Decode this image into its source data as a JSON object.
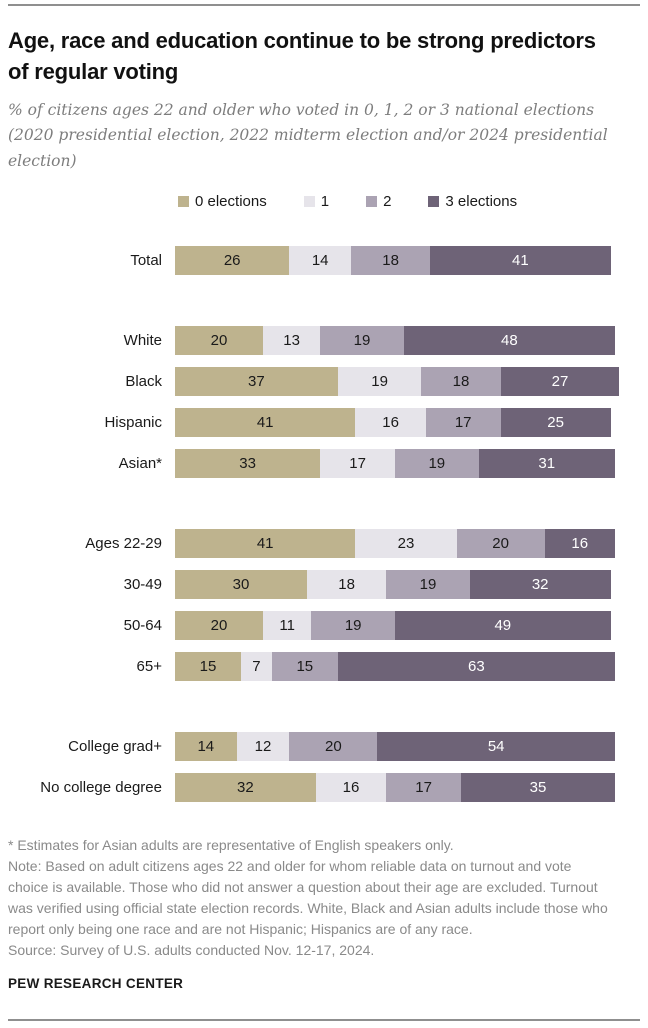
{
  "chart_data": {
    "type": "bar",
    "stacked": true,
    "orientation": "horizontal",
    "title": "Age, race and education continue to be strong predictors of regular voting",
    "subtitle": "% of citizens ages 22 and older who voted in 0, 1, 2 or 3 national elections (2020 presidential election, 2022 midterm election and/or 2024 presidential election)",
    "unit": "%",
    "xlim": [
      0,
      100
    ],
    "legend_position": "top",
    "series": [
      {
        "name": "0 elections",
        "color": "#beb38e",
        "text_color": "#1a1a1a"
      },
      {
        "name": "1",
        "color": "#e6e4ea",
        "text_color": "#1a1a1a"
      },
      {
        "name": "2",
        "color": "#aba3b3",
        "text_color": "#1a1a1a"
      },
      {
        "name": "3 elections",
        "color": "#6e6377",
        "text_color": "#ffffff"
      }
    ],
    "groups": [
      {
        "name": "total",
        "rows": [
          {
            "label": "Total",
            "values": [
              26,
              14,
              18,
              41
            ]
          }
        ]
      },
      {
        "name": "race-ethnicity",
        "rows": [
          {
            "label": "White",
            "values": [
              20,
              13,
              19,
              48
            ]
          },
          {
            "label": "Black",
            "values": [
              37,
              19,
              18,
              27
            ]
          },
          {
            "label": "Hispanic",
            "values": [
              41,
              16,
              17,
              25
            ]
          },
          {
            "label": "Asian*",
            "values": [
              33,
              17,
              19,
              31
            ]
          }
        ]
      },
      {
        "name": "age",
        "rows": [
          {
            "label": "Ages 22-29",
            "values": [
              41,
              23,
              20,
              16
            ]
          },
          {
            "label": "30-49",
            "values": [
              30,
              18,
              19,
              32
            ]
          },
          {
            "label": "50-64",
            "values": [
              20,
              11,
              19,
              49
            ]
          },
          {
            "label": "65+",
            "values": [
              15,
              7,
              15,
              63
            ]
          }
        ]
      },
      {
        "name": "education",
        "rows": [
          {
            "label": "College grad+",
            "values": [
              14,
              12,
              20,
              54
            ]
          },
          {
            "label": "No college degree",
            "values": [
              32,
              16,
              17,
              35
            ]
          }
        ]
      }
    ]
  },
  "footer": {
    "asterisk_note": "* Estimates for Asian adults are representative of English speakers only.",
    "note": "Note: Based on adult citizens ages 22 and older for whom reliable data on turnout and vote choice is available. Those who did not answer a question about their age are excluded. Turnout was verified using official state election records. White, Black and Asian adults include those who report only being one race and are not Hispanic; Hispanics are of any race.",
    "source": "Source: Survey of U.S. adults conducted Nov. 12-17, 2024.",
    "brand": "PEW RESEARCH CENTER"
  }
}
